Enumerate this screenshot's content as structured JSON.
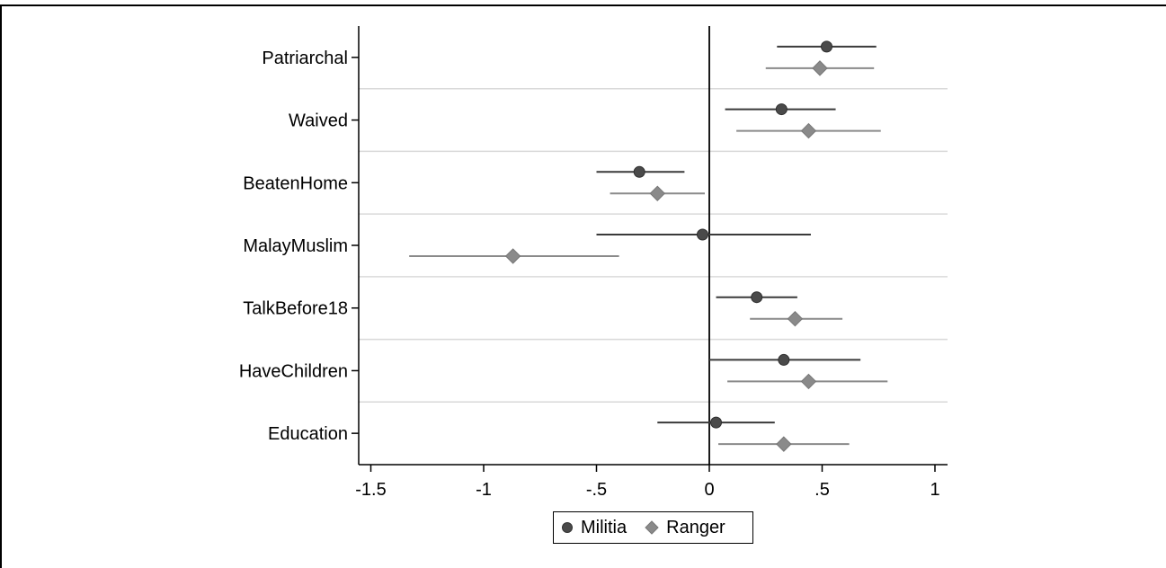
{
  "chart_data": {
    "type": "scatter",
    "subtype": "coefficient-plot-horizontal",
    "categories": [
      "Patriarchal",
      "Waived",
      "BeatenHome",
      "MalayMuslim",
      "TalkBefore18",
      "HaveChildren",
      "Education"
    ],
    "xlim": [
      -1.55,
      1.05
    ],
    "xticks": [
      -1.5,
      -1,
      -0.5,
      0,
      0.5,
      1
    ],
    "xtick_labels": [
      "-1.5",
      "-1",
      "-.5",
      "0",
      ".5",
      "1"
    ],
    "reference_line_x": 0,
    "series": [
      {
        "name": "Militia",
        "marker": "circle",
        "color": "#4a4a4a",
        "estimates": [
          0.52,
          0.32,
          -0.31,
          -0.03,
          0.21,
          0.33,
          0.03
        ],
        "ci_low": [
          0.3,
          0.07,
          -0.5,
          -0.5,
          0.03,
          0.0,
          -0.23
        ],
        "ci_high": [
          0.74,
          0.56,
          -0.11,
          0.45,
          0.39,
          0.67,
          0.29
        ]
      },
      {
        "name": "Ranger",
        "marker": "diamond",
        "color": "#8a8a8a",
        "estimates": [
          0.49,
          0.44,
          -0.23,
          -0.87,
          0.38,
          0.44,
          0.33
        ],
        "ci_low": [
          0.25,
          0.12,
          -0.44,
          -1.33,
          0.18,
          0.08,
          0.04
        ],
        "ci_high": [
          0.73,
          0.76,
          -0.02,
          -0.4,
          0.59,
          0.79,
          0.62
        ]
      }
    ],
    "legend": {
      "position": "bottom-center",
      "labels": [
        "Militia",
        "Ranger"
      ]
    }
  }
}
